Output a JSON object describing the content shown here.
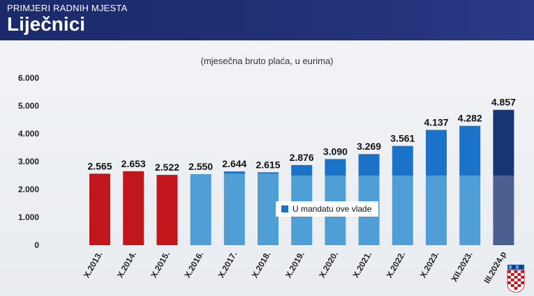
{
  "header": {
    "kicker": "PRIMJERI RADNIH MJESTA",
    "title": "Liječnici"
  },
  "colors": {
    "header_bg": "#1f2d6e",
    "red": "#c0161c",
    "light_blue": "#4f9fd6",
    "mid_blue": "#1a73c8",
    "dark_blue": "#163572",
    "slate_blue": "#4b5f91"
  },
  "icons": {
    "flag": "croatian-coat-of-arms-icon"
  },
  "chart_data": {
    "type": "bar",
    "title": "(mjesečna bruto plaća, u eurima)",
    "xlabel": "",
    "ylabel": "",
    "ylim": [
      0,
      6000
    ],
    "yticks": [
      "6.000",
      "5.000",
      "4.000",
      "3.000",
      "2.000",
      "1.000",
      "0"
    ],
    "grid": false,
    "categories": [
      "X.2013.",
      "X.2014.",
      "X.2015.",
      "X.2016.",
      "X.2017.",
      "X.2018.",
      "X.2019.",
      "X.2020.",
      "X.2021.",
      "X.2022.",
      "X.2023.",
      "XII.2023.",
      "III.2024.p"
    ],
    "values": [
      2565,
      2653,
      2522,
      2550,
      2644,
      2615,
      2876,
      3090,
      3269,
      3561,
      4137,
      4282,
      4857
    ],
    "value_labels": [
      "2.565",
      "2.653",
      "2.522",
      "2.550",
      "2.644",
      "2.615",
      "2.876",
      "3.090",
      "3.269",
      "3.561",
      "4.137",
      "4.282",
      "4.857"
    ],
    "legend": {
      "label": "U mandatu ove vlade",
      "placement": "center-right"
    }
  }
}
